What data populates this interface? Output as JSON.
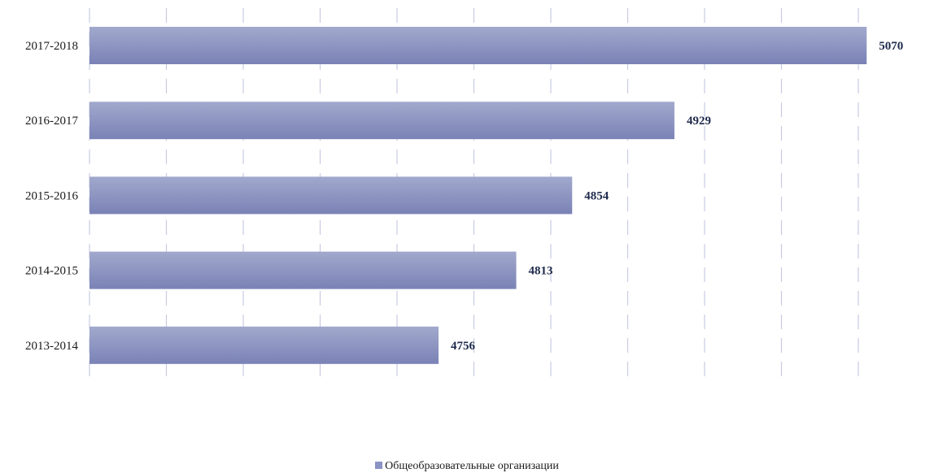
{
  "chart_data": {
    "type": "bar",
    "orientation": "horizontal",
    "categories": [
      "2017-2018",
      "2016-2017",
      "2015-2016",
      "2014-2015",
      "2013-2014"
    ],
    "series": [
      {
        "name": "Общеобразовательные организации",
        "values": [
          5070,
          4929,
          4854,
          4813,
          4756
        ]
      }
    ],
    "data_labels": [
      "5070",
      "4929",
      "4854",
      "4813",
      "4756"
    ],
    "title": "",
    "xlabel": "",
    "ylabel": "",
    "xlim": [
      4500,
      5080
    ],
    "grid": true,
    "legend_position": "bottom",
    "colors": {
      "bar_top": "#a2a9cd",
      "bar_bottom": "#7a82b6",
      "grid": "#c9cbe2",
      "legend_swatch": "#8b93c4",
      "value_label": "#1f2a4d"
    }
  },
  "legend": {
    "items": [
      {
        "label": "Общеобразовательные организации",
        "color": "#8b93c4"
      }
    ]
  }
}
